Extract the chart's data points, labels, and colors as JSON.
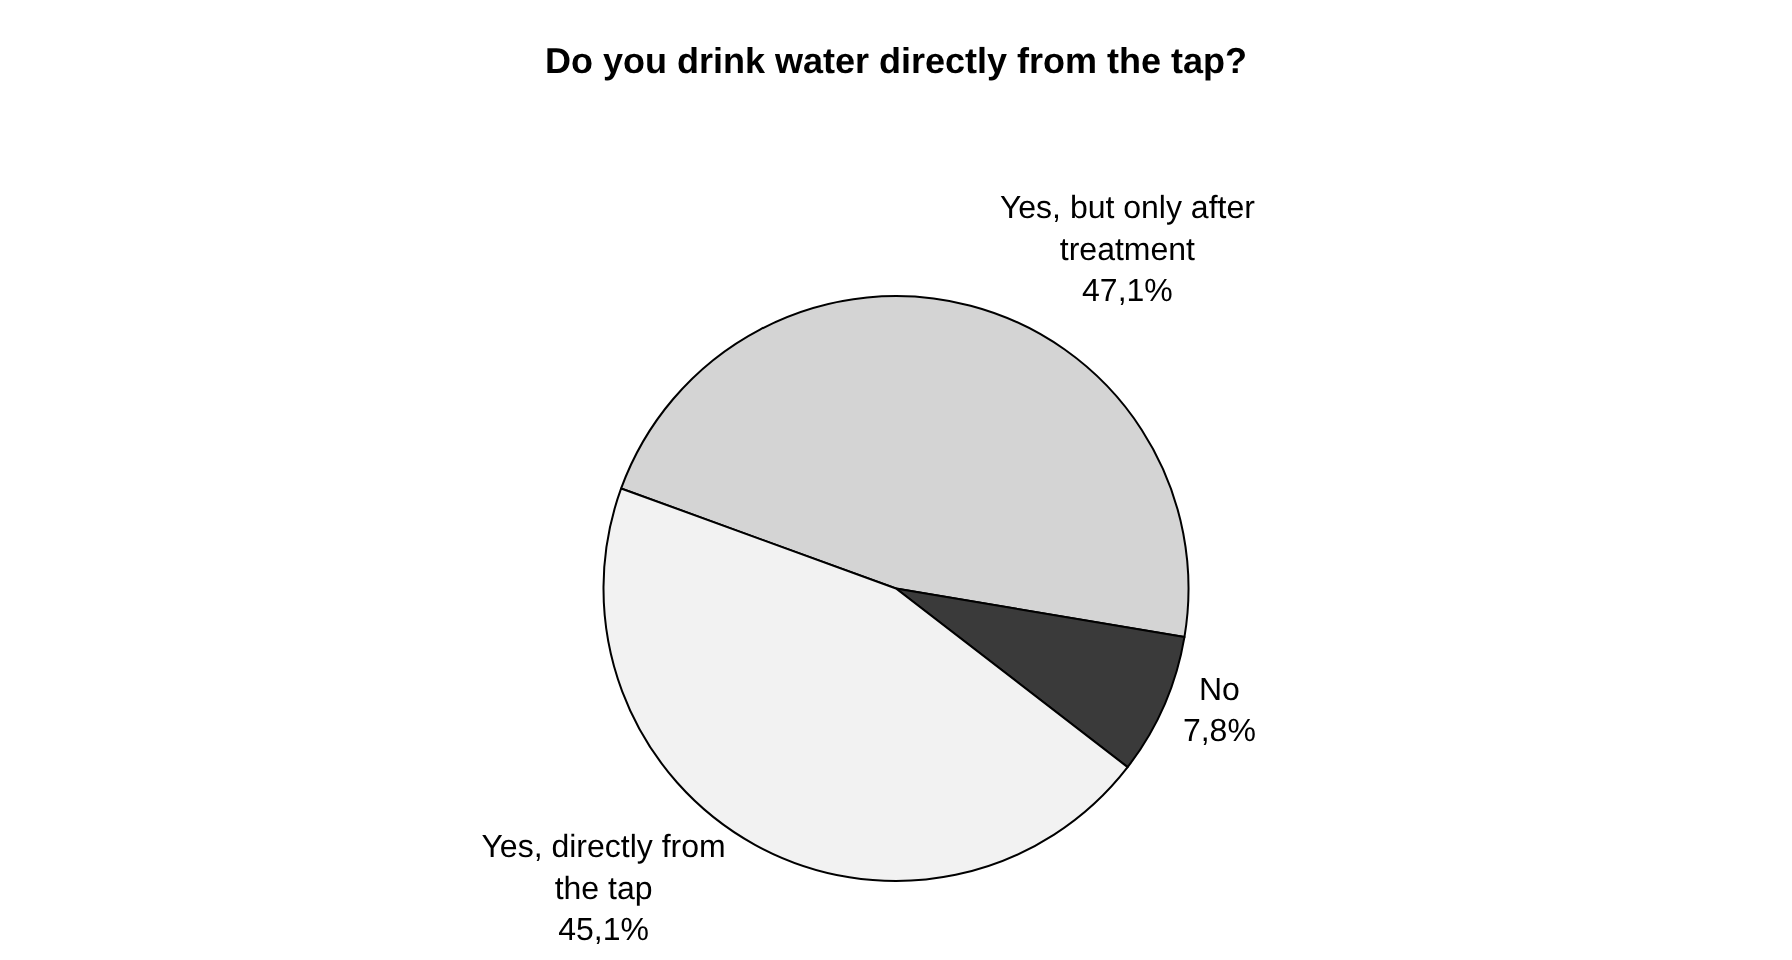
{
  "chart_data": {
    "type": "pie",
    "title": "Do you drink water directly from the tap?",
    "categories": [
      "Yes, but only after\ntreatment",
      "No",
      "Yes, directly from\nthe tap"
    ],
    "values": [
      47.1,
      7.8,
      45.1
    ],
    "value_labels": [
      "47,1%",
      "7,8%",
      "45,1%"
    ],
    "colors": [
      "#d4d4d4",
      "#3a3a3a",
      "#f2f2f2"
    ],
    "legend": false
  }
}
